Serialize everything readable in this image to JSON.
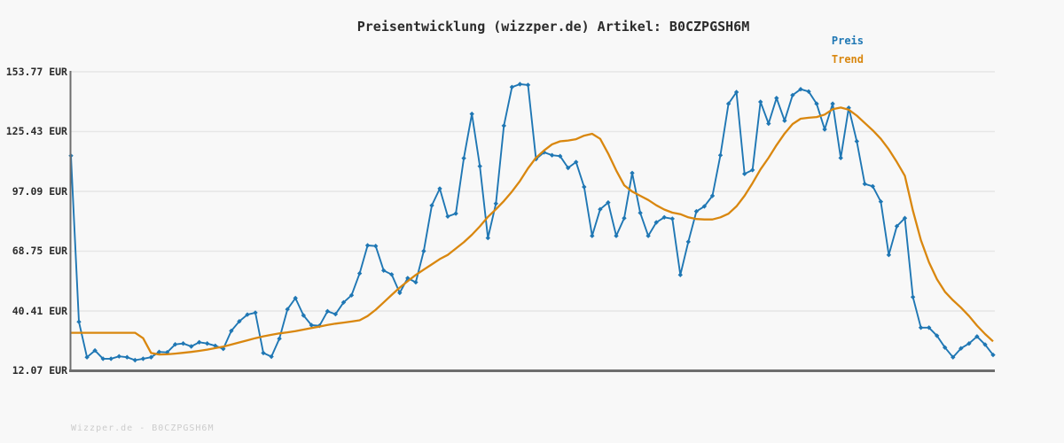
{
  "title": "Preisentwicklung (wizzper.de) Artikel: B0CZPGSH6M",
  "legend": {
    "price_label": "Preis",
    "trend_label": "Trend"
  },
  "footer": "Wizzper.de - B0CZPGSH6M",
  "colors": {
    "price": "#1f77b4",
    "trend": "#d9870f",
    "grid": "#e6e6e6",
    "axis": "#6e6e6e",
    "background": "#f8f8f8",
    "title_text": "#2b2b2b",
    "footer_text": "#cccccc"
  },
  "y_axis": {
    "ticks": [
      "153.77 EUR",
      "125.43 EUR",
      "97.09 EUR",
      "68.75 EUR",
      "40.41 EUR",
      "12.07 EUR"
    ],
    "tick_values": [
      153.77,
      125.43,
      97.09,
      68.75,
      40.41,
      12.07
    ]
  },
  "chart_data": {
    "type": "line",
    "title": "Preisentwicklung (wizzper.de) Artikel: B0CZPGSH6M",
    "ylabel": "EUR",
    "ylim": [
      12.07,
      153.77
    ],
    "grid": "horizontal",
    "legend_position": "top-right",
    "x_axis_labels": "none",
    "series": [
      {
        "name": "Preis",
        "color": "#1f77b4",
        "marker": "diamond",
        "values": [
          114.0,
          35.3,
          18.5,
          21.7,
          17.8,
          17.8,
          18.9,
          18.5,
          17.1,
          17.8,
          18.5,
          21.0,
          20.8,
          24.6,
          25.0,
          23.6,
          25.6,
          25.0,
          23.9,
          22.5,
          31.0,
          35.5,
          38.7,
          39.6,
          20.5,
          18.8,
          27.3,
          41.2,
          46.5,
          38.3,
          33.7,
          33.4,
          40.3,
          38.9,
          44.5,
          47.9,
          58.2,
          71.5,
          71.2,
          59.6,
          57.7,
          49.0,
          56.0,
          54.0,
          68.8,
          90.4,
          98.4,
          85.2,
          86.6,
          112.8,
          133.8,
          109.0,
          75.0,
          91.3,
          128.2,
          146.5,
          147.9,
          147.5,
          112.4,
          115.6,
          114.2,
          113.8,
          108.2,
          111.0,
          99.2,
          76.0,
          88.6,
          91.8,
          76.0,
          84.4,
          105.8,
          86.9,
          76.0,
          82.4,
          84.8,
          84.1,
          57.5,
          73.2,
          87.6,
          90.0,
          95.0,
          114.2,
          138.6,
          144.1,
          105.4,
          107.2,
          139.5,
          129.2,
          141.3,
          130.6,
          142.7,
          145.5,
          144.4,
          138.6,
          126.5,
          138.6,
          112.9,
          136.7,
          120.8,
          100.6,
          99.5,
          92.2,
          67.0,
          80.6,
          84.4,
          47.0,
          32.5,
          32.5,
          28.7,
          23.1,
          18.5,
          22.7,
          25.0,
          28.3,
          24.5,
          19.6
        ]
      },
      {
        "name": "Trend",
        "color": "#d9870f",
        "marker": "none",
        "values": [
          30.1,
          30.1,
          30.1,
          30.1,
          30.1,
          30.1,
          30.1,
          30.1,
          30.1,
          27.5,
          20.5,
          19.8,
          19.9,
          20.2,
          20.6,
          21.0,
          21.5,
          22.1,
          22.8,
          23.5,
          24.5,
          25.5,
          26.5,
          27.5,
          28.4,
          29.1,
          29.8,
          30.3,
          30.9,
          31.6,
          32.3,
          33.0,
          33.8,
          34.4,
          34.9,
          35.4,
          36.0,
          38.0,
          41.0,
          44.5,
          48.0,
          51.5,
          54.5,
          57.5,
          60.0,
          62.5,
          65.0,
          67.0,
          70.0,
          73.0,
          76.5,
          80.5,
          85.0,
          88.6,
          92.5,
          97.0,
          102.0,
          108.0,
          113.0,
          116.5,
          119.4,
          120.8,
          121.2,
          121.8,
          123.5,
          124.4,
          122.0,
          115.0,
          107.0,
          100.0,
          97.0,
          95.0,
          93.0,
          90.5,
          88.5,
          87.0,
          86.3,
          84.8,
          84.0,
          83.8,
          83.8,
          84.8,
          86.5,
          90.0,
          95.0,
          101.0,
          107.5,
          113.0,
          119.0,
          124.5,
          129.0,
          131.5,
          132.0,
          132.3,
          133.5,
          136.0,
          136.8,
          135.8,
          133.0,
          129.5,
          126.0,
          122.0,
          117.0,
          111.0,
          104.5,
          88.0,
          74.0,
          63.5,
          55.5,
          49.5,
          45.5,
          42.0,
          38.0,
          33.5,
          29.5,
          26.0
        ]
      }
    ]
  }
}
